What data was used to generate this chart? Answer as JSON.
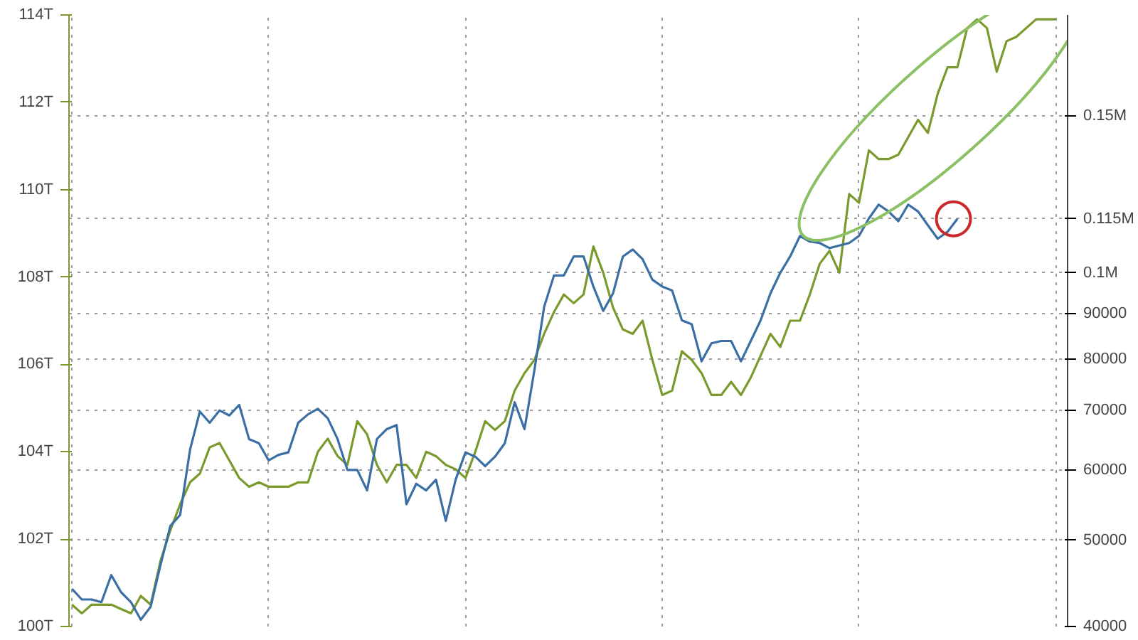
{
  "chart_data": {
    "type": "line",
    "categories": [
      null,
      null,
      null,
      null,
      null,
      null,
      null,
      null,
      null,
      null,
      null,
      null,
      null,
      null,
      null,
      null,
      null,
      null,
      null,
      null,
      null,
      null,
      null,
      null,
      null,
      null,
      null,
      null,
      null,
      null,
      null,
      null,
      null,
      null,
      null,
      null,
      null,
      null,
      null,
      null,
      null,
      null,
      null,
      null,
      null,
      null,
      null,
      null,
      null,
      null,
      null,
      null,
      null,
      null,
      null,
      null,
      null,
      null,
      null,
      null,
      null,
      null,
      null,
      null,
      null,
      null,
      null,
      null,
      null,
      null,
      null,
      null,
      null,
      null,
      null,
      null,
      null,
      null,
      null,
      null,
      null,
      null,
      null,
      null,
      null,
      null,
      null,
      null,
      null,
      null,
      null,
      null,
      null,
      null,
      null,
      null,
      null,
      null,
      null,
      null,
      null
    ],
    "ylim": [
      100,
      114
    ],
    "yticks": [
      {
        "value": 100,
        "label": "100T"
      },
      {
        "value": 102,
        "label": "102T"
      },
      {
        "value": 104,
        "label": "104T"
      },
      {
        "value": 106,
        "label": "106T"
      },
      {
        "value": 108,
        "label": "108T"
      },
      {
        "value": 110,
        "label": "110T"
      },
      {
        "value": 112,
        "label": "112T"
      },
      {
        "value": 114,
        "label": "114T"
      }
    ],
    "y2lim": [
      40000,
      195000
    ],
    "y2ticks": [
      40000,
      50000,
      60000,
      70000,
      80000,
      90000,
      {
        "value": 100000,
        "label": "0.1M"
      },
      {
        "value": 115000,
        "label": "0.115M"
      },
      {
        "value": 150000,
        "label": "0.15M"
      }
    ],
    "log": "y2",
    "grid": true,
    "series": [
      {
        "color": "#7a9a2e",
        "values": [
          100.5,
          100.3,
          100.5,
          100.5,
          100.5,
          100.4,
          100.3,
          100.7,
          100.5,
          101.5,
          102.2,
          102.8,
          103.3,
          103.5,
          104.1,
          104.2,
          103.8,
          103.4,
          103.2,
          103.3,
          103.2,
          103.2,
          103.2,
          103.3,
          103.3,
          104.0,
          104.3,
          103.9,
          103.7,
          104.7,
          104.4,
          103.7,
          103.3,
          103.7,
          103.7,
          103.4,
          104.0,
          103.9,
          103.7,
          103.6,
          103.4,
          104.0,
          104.7,
          104.5,
          104.7,
          105.4,
          105.8,
          106.1,
          106.7,
          107.2,
          107.6,
          107.4,
          107.6,
          108.7,
          108.1,
          107.3,
          106.8,
          106.7,
          107.0,
          106.1,
          105.3,
          105.4,
          106.3,
          106.1,
          105.8,
          105.3,
          105.3,
          105.6,
          105.3,
          105.7,
          106.2,
          106.7,
          106.4,
          107.0,
          107.0,
          107.6,
          108.3,
          108.6,
          108.1,
          109.9,
          109.7,
          110.9,
          110.7,
          110.7,
          110.8,
          111.2,
          111.6,
          111.3,
          112.2,
          112.8,
          112.8,
          113.7,
          113.9,
          113.7,
          112.7,
          113.4,
          113.5,
          113.7,
          113.9,
          113.9,
          113.9
        ]
      },
      {
        "color": "#3b6ea5",
        "axis": "y2",
        "values": [
          44100,
          42900,
          42900,
          42600,
          45700,
          43700,
          42600,
          40700,
          42100,
          46900,
          51900,
          53400,
          63200,
          69800,
          67800,
          70000,
          69100,
          71000,
          65000,
          64300,
          61500,
          62400,
          62800,
          67800,
          69300,
          70300,
          68600,
          65000,
          60000,
          60000,
          56900,
          65000,
          66700,
          67400,
          54900,
          57900,
          56900,
          58500,
          52600,
          58500,
          62800,
          62100,
          60600,
          62100,
          64300,
          71500,
          66700,
          77600,
          91600,
          99300,
          99300,
          104300,
          104300,
          96500,
          90600,
          94800,
          104300,
          106200,
          103600,
          98200,
          96500,
          95500,
          88400,
          87500,
          79500,
          83300,
          83800,
          83800,
          79500,
          83800,
          88400,
          94800,
          100000,
          104300,
          110000,
          108400,
          108000,
          106600,
          107300,
          108000,
          110000,
          115100,
          119300,
          117200,
          114300,
          119300,
          117200,
          113100,
          109200,
          111200,
          115000,
          null,
          null,
          null,
          null,
          null,
          null,
          null,
          null,
          null,
          null
        ]
      }
    ]
  }
}
